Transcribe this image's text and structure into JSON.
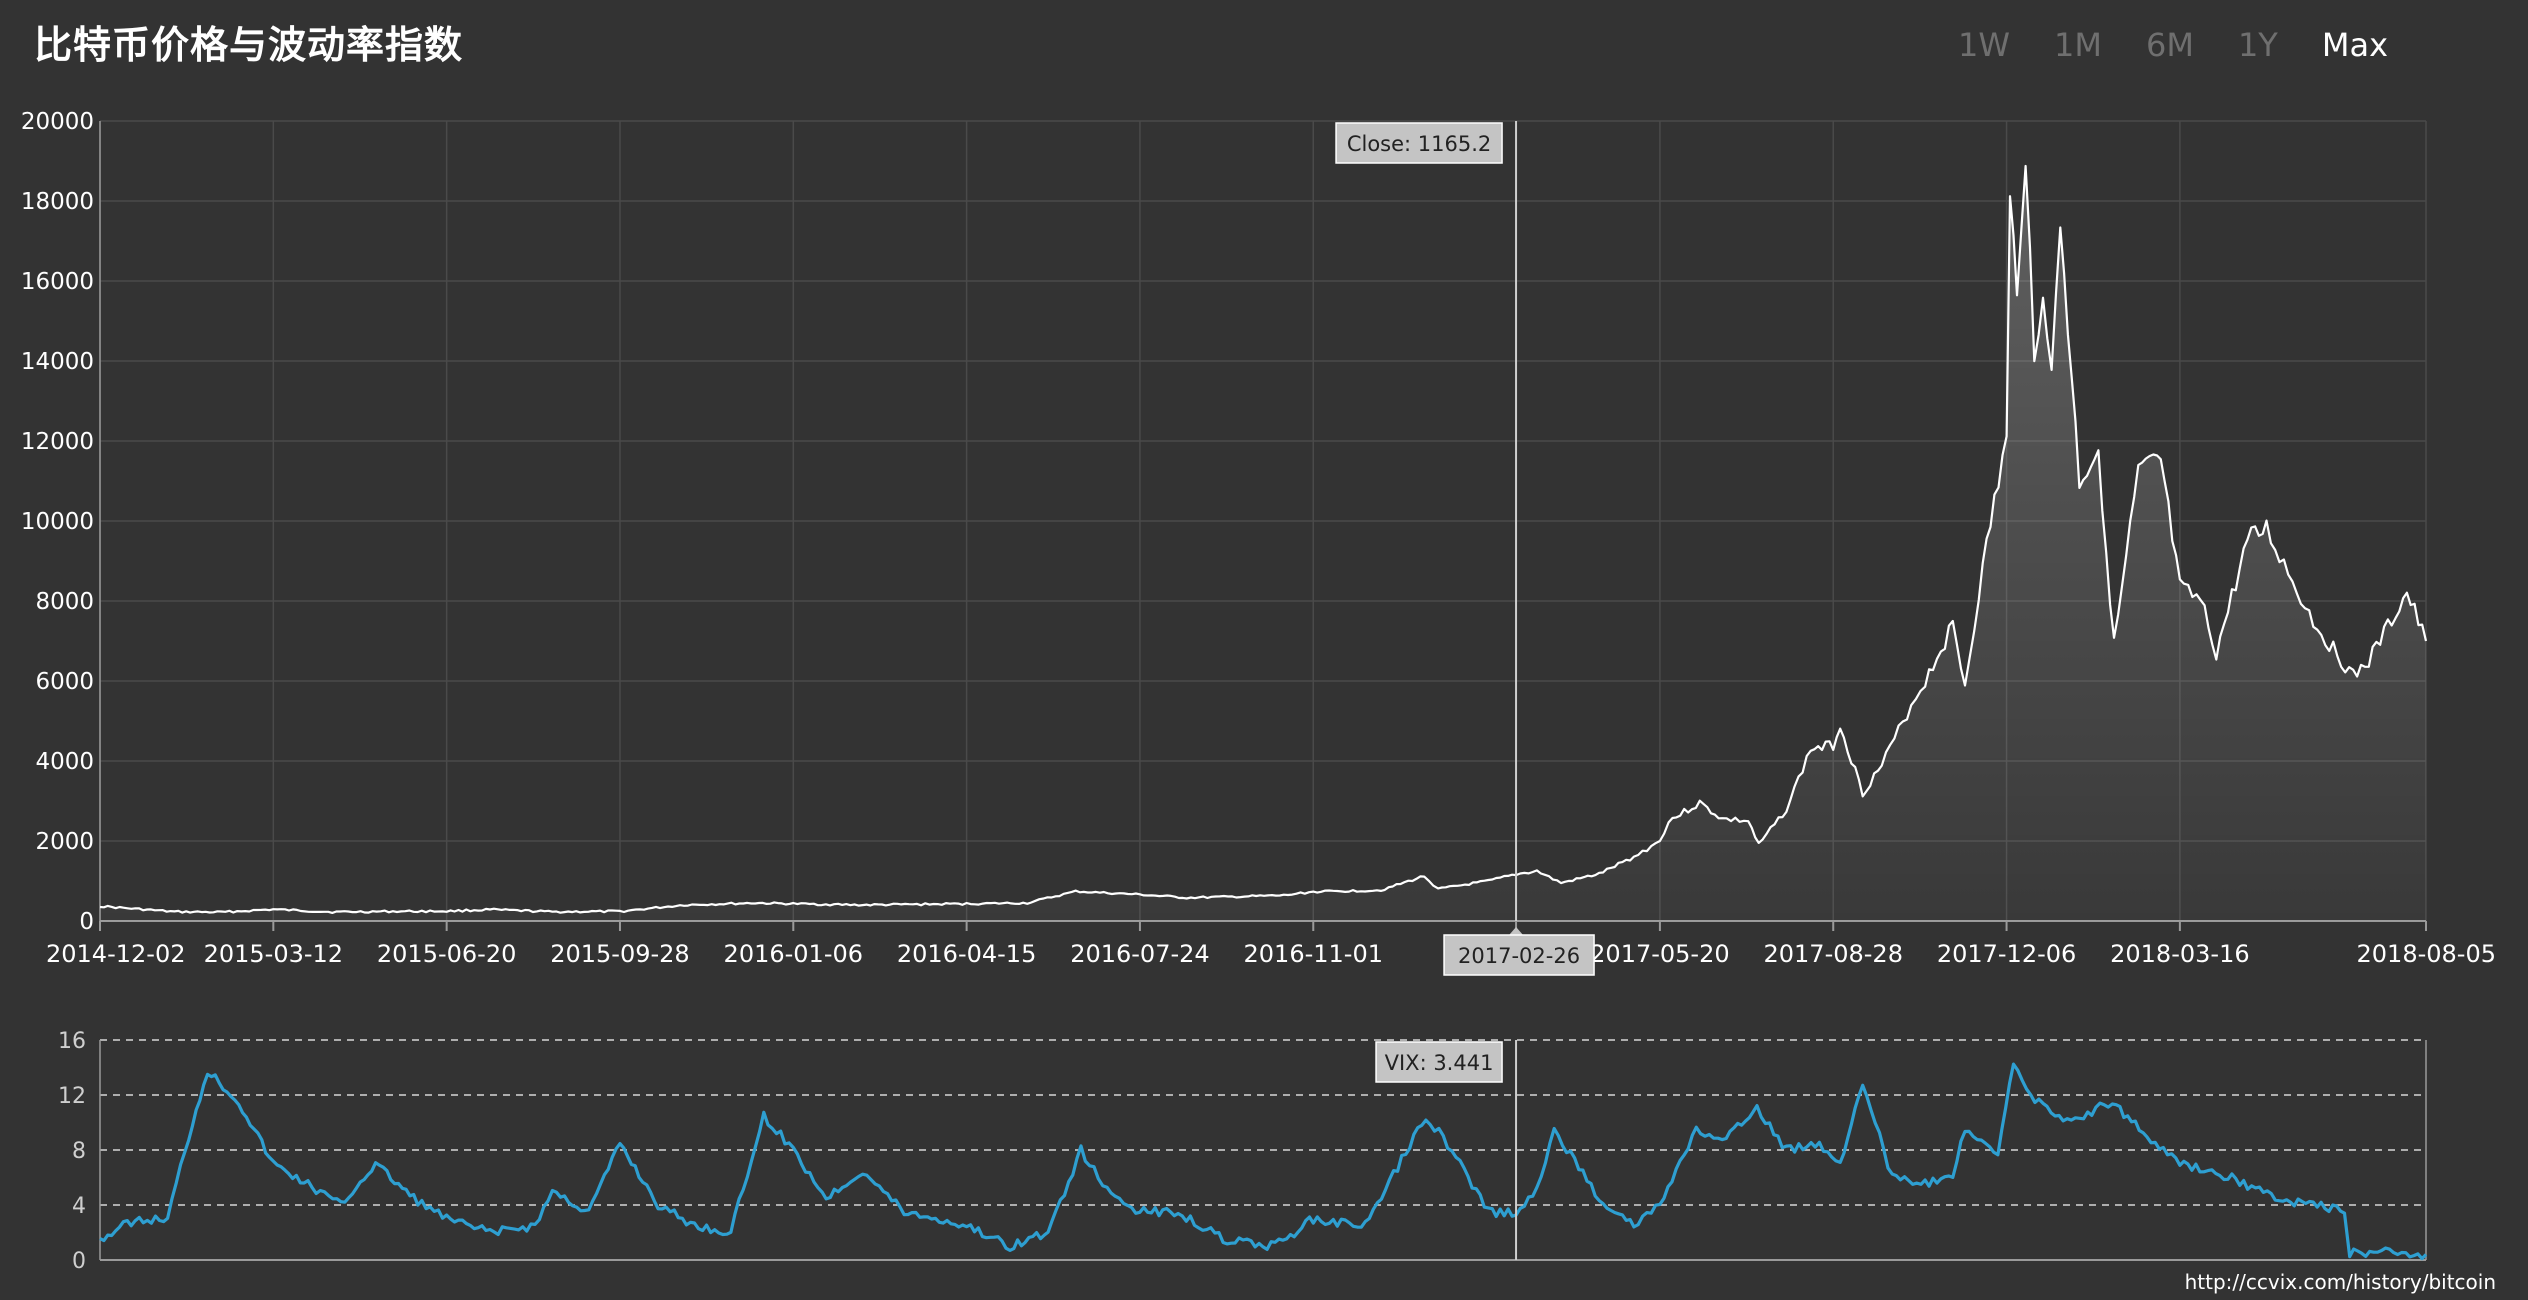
{
  "header": {
    "title": "比特币价格与波动率指数",
    "ranges": [
      "1W",
      "1M",
      "6M",
      "1Y",
      "Max"
    ],
    "active_range": "Max"
  },
  "source": "http://ccvix.com/history/bitcoin",
  "colors": {
    "background": "#333333",
    "price_line": "#ffffff",
    "vix_line": "#2e9fd1",
    "grid": "#4a4a4a",
    "axis_text": "#ffffff",
    "tooltip_bg": "#c4c4c4",
    "tooltip_text": "#222222"
  },
  "tooltips": {
    "close": "Close: 1165.2",
    "date": "2017-02-26",
    "vix": "VIX: 3.441"
  },
  "chart_data": [
    {
      "type": "area",
      "x_axis": "date",
      "ylim": [
        0,
        20000
      ],
      "yticks": [
        0,
        2000,
        4000,
        6000,
        8000,
        10000,
        12000,
        14000,
        16000,
        18000,
        20000
      ],
      "xticks": [
        "2014-12-02",
        "2015-03-12",
        "2015-06-20",
        "2015-09-28",
        "2016-01-06",
        "2016-04-15",
        "2016-07-24",
        "2016-11-01",
        "2017-02-26",
        "2017-05-20",
        "2017-08-28",
        "2017-12-06",
        "2018-03-16",
        "2018-08-05"
      ],
      "grid": true,
      "crosshair_date": "2017-02-26",
      "crosshair_value": 1165.2,
      "points": [
        [
          "2014-12-02",
          370
        ],
        [
          "2015-01-14",
          230
        ],
        [
          "2015-02-10",
          220
        ],
        [
          "2015-03-12",
          290
        ],
        [
          "2015-04-15",
          225
        ],
        [
          "2015-05-20",
          240
        ],
        [
          "2015-06-20",
          245
        ],
        [
          "2015-07-15",
          285
        ],
        [
          "2015-08-20",
          230
        ],
        [
          "2015-09-28",
          240
        ],
        [
          "2015-11-04",
          400
        ],
        [
          "2015-12-15",
          450
        ],
        [
          "2016-01-06",
          430
        ],
        [
          "2016-02-15",
          400
        ],
        [
          "2016-03-15",
          415
        ],
        [
          "2016-04-15",
          430
        ],
        [
          "2016-05-20",
          450
        ],
        [
          "2016-06-17",
          740
        ],
        [
          "2016-07-24",
          660
        ],
        [
          "2016-08-20",
          580
        ],
        [
          "2016-09-20",
          610
        ],
        [
          "2016-10-15",
          640
        ],
        [
          "2016-11-01",
          730
        ],
        [
          "2016-12-10",
          770
        ],
        [
          "2017-01-04",
          1120
        ],
        [
          "2017-01-12",
          800
        ],
        [
          "2017-02-10",
          1000
        ],
        [
          "2017-02-26",
          1165.2
        ],
        [
          "2017-03-10",
          1250
        ],
        [
          "2017-03-24",
          950
        ],
        [
          "2017-04-15",
          1180
        ],
        [
          "2017-05-05",
          1600
        ],
        [
          "2017-05-20",
          2000
        ],
        [
          "2017-05-25",
          2500
        ],
        [
          "2017-06-12",
          2950
        ],
        [
          "2017-06-25",
          2550
        ],
        [
          "2017-07-10",
          2500
        ],
        [
          "2017-07-16",
          1900
        ],
        [
          "2017-08-01",
          2800
        ],
        [
          "2017-08-15",
          4300
        ],
        [
          "2017-08-28",
          4400
        ],
        [
          "2017-09-01",
          4900
        ],
        [
          "2017-09-14",
          3200
        ],
        [
          "2017-09-25",
          3900
        ],
        [
          "2017-10-12",
          5400
        ],
        [
          "2017-10-20",
          6000
        ],
        [
          "2017-11-05",
          7400
        ],
        [
          "2017-11-12",
          5900
        ],
        [
          "2017-11-20",
          8200
        ],
        [
          "2017-11-29",
          10500
        ],
        [
          "2017-12-06",
          12000
        ],
        [
          "2017-12-08",
          17800
        ],
        [
          "2017-12-12",
          16000
        ],
        [
          "2017-12-17",
          19400
        ],
        [
          "2017-12-22",
          13800
        ],
        [
          "2017-12-27",
          16000
        ],
        [
          "2018-01-01",
          13500
        ],
        [
          "2018-01-06",
          17500
        ],
        [
          "2018-01-17",
          11000
        ],
        [
          "2018-01-28",
          11800
        ],
        [
          "2018-02-06",
          6900
        ],
        [
          "2018-02-20",
          11200
        ],
        [
          "2018-03-05",
          11500
        ],
        [
          "2018-03-16",
          8300
        ],
        [
          "2018-03-28",
          8000
        ],
        [
          "2018-04-06",
          6700
        ],
        [
          "2018-04-24",
          9500
        ],
        [
          "2018-05-05",
          9800
        ],
        [
          "2018-05-20",
          8500
        ],
        [
          "2018-06-01",
          7500
        ],
        [
          "2018-06-24",
          6100
        ],
        [
          "2018-07-03",
          6500
        ],
        [
          "2018-07-25",
          8200
        ],
        [
          "2018-08-05",
          7000
        ]
      ]
    },
    {
      "type": "line",
      "x_axis": "date",
      "ylim": [
        0,
        16
      ],
      "yticks": [
        0,
        4,
        8,
        12,
        16
      ],
      "grid": true,
      "series": [
        {
          "name": "VIX",
          "points": [
            [
              "2014-12-02",
              1.5
            ],
            [
              "2014-12-20",
              2.8
            ],
            [
              "2015-01-10",
              3.0
            ],
            [
              "2015-01-20",
              8.0
            ],
            [
              "2015-02-02",
              13.8
            ],
            [
              "2015-02-20",
              11.5
            ],
            [
              "2015-03-12",
              7.0
            ],
            [
              "2015-04-01",
              5.5
            ],
            [
              "2015-04-20",
              4.0
            ],
            [
              "2015-05-10",
              7.0
            ],
            [
              "2015-06-01",
              4.5
            ],
            [
              "2015-06-20",
              3.0
            ],
            [
              "2015-07-15",
              2.0
            ],
            [
              "2015-08-10",
              2.5
            ],
            [
              "2015-08-20",
              5.0
            ],
            [
              "2015-09-10",
              3.5
            ],
            [
              "2015-09-28",
              8.5
            ],
            [
              "2015-10-20",
              4.0
            ],
            [
              "2015-11-10",
              2.5
            ],
            [
              "2015-12-01",
              2.0
            ],
            [
              "2015-12-20",
              10.5
            ],
            [
              "2016-01-06",
              8.0
            ],
            [
              "2016-01-25",
              4.5
            ],
            [
              "2016-02-15",
              6.5
            ],
            [
              "2016-03-10",
              3.5
            ],
            [
              "2016-04-15",
              2.5
            ],
            [
              "2016-05-10",
              1.0
            ],
            [
              "2016-06-01",
              2.0
            ],
            [
              "2016-06-20",
              8.0
            ],
            [
              "2016-07-05",
              5.0
            ],
            [
              "2016-07-24",
              3.5
            ],
            [
              "2016-08-15",
              3.5
            ],
            [
              "2016-09-10",
              1.5
            ],
            [
              "2016-10-10",
              1.0
            ],
            [
              "2016-11-01",
              3.0
            ],
            [
              "2016-12-01",
              2.5
            ],
            [
              "2017-01-05",
              10.5
            ],
            [
              "2017-01-20",
              8.0
            ],
            [
              "2017-02-10",
              3.5
            ],
            [
              "2017-02-26",
              3.441
            ],
            [
              "2017-03-10",
              5.0
            ],
            [
              "2017-03-20",
              9.5
            ],
            [
              "2017-04-15",
              4.5
            ],
            [
              "2017-05-05",
              2.5
            ],
            [
              "2017-05-20",
              4.0
            ],
            [
              "2017-06-10",
              9.5
            ],
            [
              "2017-06-25",
              8.5
            ],
            [
              "2017-07-15",
              11.0
            ],
            [
              "2017-08-01",
              8.0
            ],
            [
              "2017-08-20",
              8.5
            ],
            [
              "2017-09-01",
              7.0
            ],
            [
              "2017-09-14",
              13.0
            ],
            [
              "2017-10-01",
              6.0
            ],
            [
              "2017-10-20",
              5.5
            ],
            [
              "2017-11-05",
              6.0
            ],
            [
              "2017-11-12",
              9.5
            ],
            [
              "2017-12-01",
              7.5
            ],
            [
              "2017-12-10",
              14.5
            ],
            [
              "2017-12-20",
              12.0
            ],
            [
              "2018-01-10",
              10.0
            ],
            [
              "2018-02-05",
              11.5
            ],
            [
              "2018-02-25",
              9.0
            ],
            [
              "2018-03-16",
              7.0
            ],
            [
              "2018-04-15",
              6.0
            ],
            [
              "2018-05-10",
              4.5
            ],
            [
              "2018-06-01",
              4.0
            ],
            [
              "2018-06-19",
              3.5
            ],
            [
              "2018-06-22",
              0.5
            ],
            [
              "2018-07-15",
              0.6
            ],
            [
              "2018-08-05",
              0.4
            ]
          ]
        }
      ]
    }
  ]
}
